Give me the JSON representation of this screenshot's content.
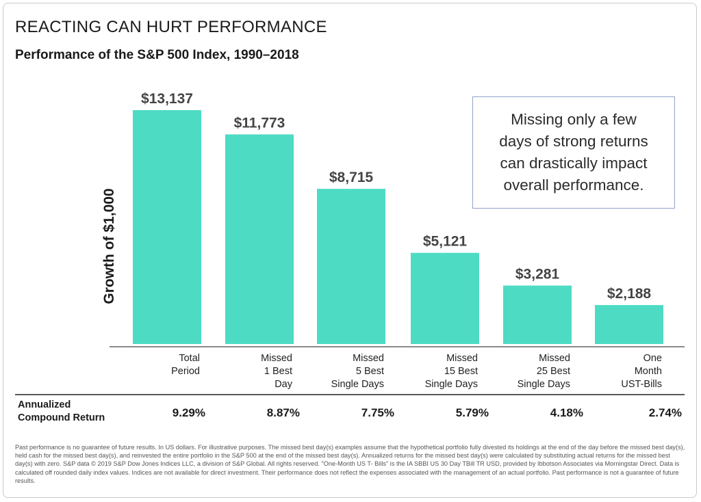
{
  "title": "REACTING CAN HURT PERFORMANCE",
  "subtitle": "Performance of the S&P 500 Index, 1990–2018",
  "callout": {
    "lines": [
      "Missing only a few",
      "days of strong returns",
      "can drastically impact",
      "overall performance."
    ]
  },
  "returns": {
    "header_line1": "Annualized",
    "header_line2": "Compound Return",
    "values": [
      "9.29%",
      "8.87%",
      "7.75%",
      "5.79%",
      "4.18%",
      "2.74%"
    ]
  },
  "footnote": "Past performance is no guarantee of future results. In US dollars. For illustrative purposes. The missed best day(s) examples assume that the hypothetical portfolio fully divested its holdings at the end of the day before the missed best day(s), held cash for the missed best day(s), and reinvested the entire portfolio in the S&P 500 at the end of the missed best day(s). Annualized returns for the missed best day(s) were calculated by substituting actual returns for the missed best day(s) with zero. S&P data © 2019 S&P Dow Jones Indices LLC, a division of S&P Global. All rights reserved. \"One-Month US T- Bills\" is the IA SBBI US 30 Day TBill TR USD, provided by Ibbotson Associates via Morningstar Direct. Data is calculated off rounded daily index values. Indices are not available for direct investment. Their performance does not reflect the expenses associated with the management of an actual portfolio. Past performance is not a guarantee of future results.",
  "colors": {
    "bar": "#4ddbc4",
    "text": "#1a1a1a",
    "label": "#444444",
    "callout_border": "#8fa3c8"
  },
  "chart_data": {
    "type": "bar",
    "title": "Performance of the S&P 500 Index, 1990–2018",
    "ylabel": "Growth of $1,000",
    "xlabel": "",
    "categories": [
      [
        "Total",
        "Period"
      ],
      [
        "Missed",
        "1 Best",
        "Day"
      ],
      [
        "Missed",
        "5 Best",
        "Single Days"
      ],
      [
        "Missed",
        "15 Best",
        "Single Days"
      ],
      [
        "Missed",
        "25 Best",
        "Single Days"
      ],
      [
        "One",
        "Month",
        "UST-Bills"
      ]
    ],
    "values": [
      13137,
      11773,
      8715,
      5121,
      3281,
      2188
    ],
    "value_labels": [
      "$13,137",
      "$11,773",
      "$8,715",
      "$5,121",
      "$3,281",
      "$2,188"
    ],
    "ylim": [
      0,
      13137
    ],
    "grid": false,
    "legend": "none"
  }
}
